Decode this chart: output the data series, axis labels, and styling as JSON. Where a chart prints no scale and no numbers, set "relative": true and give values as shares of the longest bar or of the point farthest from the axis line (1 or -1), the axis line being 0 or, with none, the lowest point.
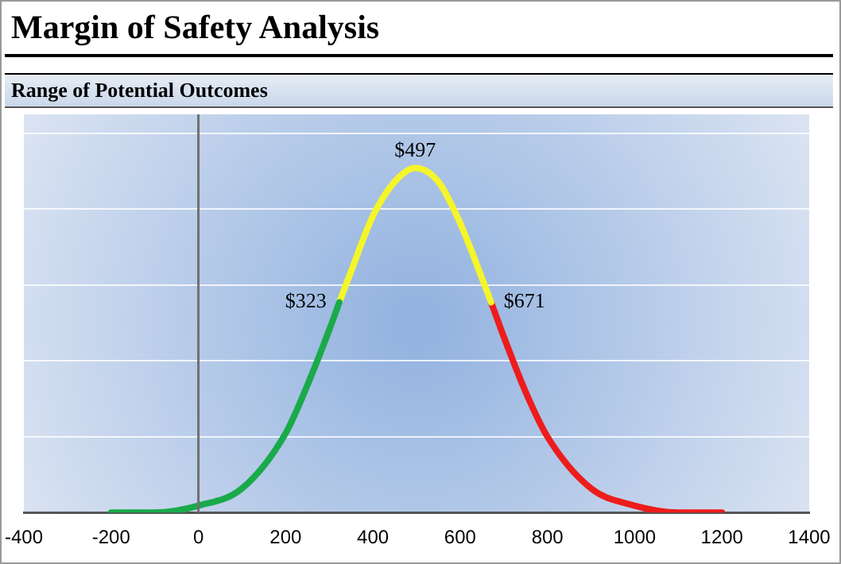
{
  "chart_data": {
    "type": "line",
    "title": "Margin of Safety Analysis",
    "subtitle": "Range of Potential Outcomes",
    "relative": true,
    "xlim": [
      -400,
      1400
    ],
    "xticks": [
      -400,
      -200,
      0,
      200,
      400,
      600,
      800,
      1000,
      1200,
      1400
    ],
    "grid": "y",
    "legend": false,
    "marker": "none",
    "line_style": "solid",
    "series": [
      {
        "color": "#1aaa4a",
        "x": [
          -200,
          -100,
          0,
          100,
          200,
          250,
          300,
          323
        ],
        "values": [
          0,
          0,
          0.02,
          0.07,
          0.23,
          0.37,
          0.53,
          0.61
        ]
      },
      {
        "color": "#f5f52a",
        "x": [
          323,
          350,
          400,
          450,
          497,
          550,
          600,
          650,
          671
        ],
        "values": [
          0.61,
          0.7,
          0.86,
          0.96,
          1,
          0.96,
          0.84,
          0.68,
          0.61
        ]
      },
      {
        "color": "#ee1c1c",
        "x": [
          671,
          700,
          750,
          800,
          900,
          1000,
          1100,
          1200
        ],
        "values": [
          0.61,
          0.51,
          0.35,
          0.22,
          0.07,
          0.02,
          0,
          0
        ]
      }
    ],
    "ref_lines": [
      {
        "axis": "x",
        "value": 0,
        "color": "#707070"
      }
    ],
    "annotations": [
      {
        "text": "$323",
        "x": 323,
        "y": 0.61
      },
      {
        "text": "$497",
        "x": 497,
        "y": 1
      },
      {
        "text": "$671",
        "x": 671,
        "y": 0.61
      }
    ]
  }
}
